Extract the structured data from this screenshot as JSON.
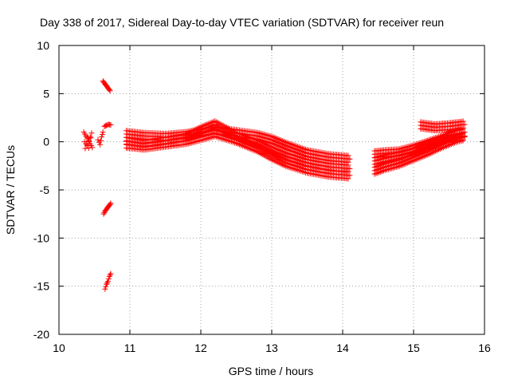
{
  "chart_data": {
    "type": "scatter",
    "title": "Day 338 of 2017, Sidereal Day-to-day VTEC variation (SDTVAR) for receiver reun",
    "xlabel": "GPS time / hours",
    "ylabel": "SDTVAR / TECUs",
    "xlim": [
      10,
      16
    ],
    "ylim": [
      -20,
      10
    ],
    "xticks": [
      "10",
      "11",
      "12",
      "13",
      "14",
      "15",
      "16"
    ],
    "yticks": [
      "-20",
      "-15",
      "-10",
      "-5",
      "0",
      "5",
      "10"
    ],
    "grid": true,
    "marker": "+",
    "series_color": "#ff0000",
    "series": [
      {
        "name": "scatter-cluster-10-4",
        "x": [
          10.35,
          10.38,
          10.41,
          10.44,
          10.47,
          10.37,
          10.42,
          10.46,
          10.36,
          10.4,
          10.45
        ],
        "y": [
          1.0,
          0.6,
          0.3,
          -0.2,
          -0.6,
          -0.7,
          0.1,
          0.9,
          0.0,
          -0.4,
          0.4
        ]
      },
      {
        "name": "scatter-cluster-10-6",
        "x": [
          10.55,
          10.58,
          10.6,
          10.62
        ],
        "y": [
          0.2,
          -0.3,
          0.5,
          1.0
        ]
      },
      {
        "name": "scatter-upper-spike",
        "x": [
          10.62,
          10.64,
          10.66,
          10.68,
          10.7,
          10.72
        ],
        "y": [
          6.3,
          6.1,
          5.9,
          5.7,
          5.5,
          5.3
        ]
      },
      {
        "name": "scatter-mid-spike",
        "x": [
          10.64,
          10.67,
          10.7,
          10.73
        ],
        "y": [
          1.6,
          1.7,
          1.8,
          1.75
        ]
      },
      {
        "name": "scatter-lower-spike",
        "x": [
          10.63,
          10.65,
          10.67,
          10.69,
          10.71,
          10.73
        ],
        "y": [
          -7.5,
          -7.2,
          -7.0,
          -6.8,
          -6.6,
          -6.4
        ]
      },
      {
        "name": "scatter-bottom-spike",
        "x": [
          10.65,
          10.67,
          10.69,
          10.71,
          10.73
        ],
        "y": [
          -15.3,
          -14.8,
          -14.5,
          -14.0,
          -13.7
        ]
      },
      {
        "name": "track-a",
        "x": [
          10.95,
          11.2,
          11.5,
          11.8,
          12.0,
          12.2,
          12.5,
          12.8,
          13.0,
          13.2,
          13.5,
          13.8,
          14.1
        ],
        "y": [
          0.8,
          0.6,
          0.5,
          0.7,
          1.0,
          1.2,
          0.9,
          0.6,
          0.2,
          -0.4,
          -1.2,
          -1.6,
          -1.8
        ]
      },
      {
        "name": "track-b",
        "x": [
          10.95,
          11.2,
          11.5,
          11.8,
          12.0,
          12.2,
          12.5,
          12.8,
          13.0,
          13.2,
          13.5,
          13.8,
          14.1
        ],
        "y": [
          0.1,
          -0.2,
          0.1,
          0.5,
          1.2,
          1.8,
          0.6,
          -0.2,
          -0.9,
          -1.5,
          -2.2,
          -2.6,
          -2.8
        ]
      },
      {
        "name": "track-c",
        "x": [
          10.95,
          11.2,
          11.5,
          11.8,
          12.0,
          12.2,
          12.5,
          12.8,
          13.0,
          13.2,
          13.5,
          13.8,
          14.1
        ],
        "y": [
          -0.3,
          -0.5,
          -0.2,
          0.1,
          0.5,
          0.9,
          0.2,
          -0.7,
          -1.5,
          -2.2,
          -2.9,
          -3.3,
          -3.5
        ]
      },
      {
        "name": "track-d",
        "x": [
          14.45,
          14.6,
          14.8,
          15.0,
          15.2,
          15.4,
          15.6,
          15.72
        ],
        "y": [
          -1.3,
          -1.2,
          -1.1,
          -0.7,
          -0.2,
          0.3,
          0.8,
          1.0
        ]
      },
      {
        "name": "track-e",
        "x": [
          14.45,
          14.6,
          14.8,
          15.0,
          15.2,
          15.4,
          15.6,
          15.72
        ],
        "y": [
          -2.0,
          -1.7,
          -1.4,
          -1.0,
          -0.4,
          0.1,
          0.5,
          0.6
        ]
      },
      {
        "name": "track-f",
        "x": [
          14.45,
          14.6,
          14.8,
          15.0,
          15.2,
          15.4,
          15.6,
          15.72
        ],
        "y": [
          -3.0,
          -2.6,
          -2.2,
          -1.6,
          -1.0,
          -0.3,
          0.3,
          0.5
        ]
      },
      {
        "name": "track-g",
        "x": [
          15.1,
          15.3,
          15.5,
          15.72
        ],
        "y": [
          1.7,
          1.5,
          1.6,
          1.8
        ]
      }
    ]
  }
}
